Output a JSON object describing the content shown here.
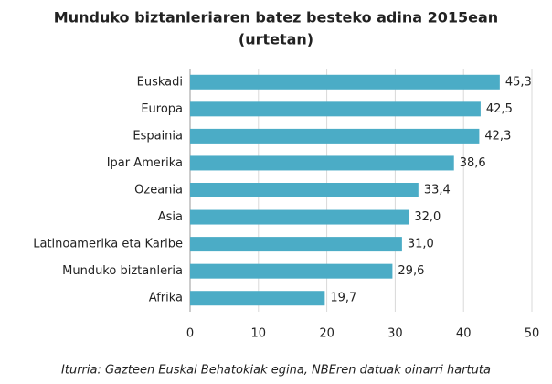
{
  "chart_data": {
    "type": "bar",
    "orientation": "horizontal",
    "title": "Munduko biztanleriaren batez besteko adina 2015ean",
    "subtitle": "(urtetan)",
    "categories": [
      "Euskadi",
      "Europa",
      "Espainia",
      "Ipar Amerika",
      "Ozeania",
      "Asia",
      "Latinoamerika eta Karibe",
      "Munduko biztanleria",
      "Afrika"
    ],
    "values": [
      45.3,
      42.5,
      42.3,
      38.6,
      33.4,
      32.0,
      31.0,
      29.6,
      19.7
    ],
    "value_labels": [
      "45,3",
      "42,5",
      "42,3",
      "38,6",
      "33,4",
      "32,0",
      "31,0",
      "29,6",
      "19,7"
    ],
    "color": "#4bacc6",
    "xlim": [
      0,
      50
    ],
    "xticks": [
      0,
      10,
      20,
      30,
      40,
      50
    ],
    "grid": true,
    "source": "Iturria: Gazteen Euskal Behatokiak egina, NBEren datuak oinarri hartuta"
  }
}
